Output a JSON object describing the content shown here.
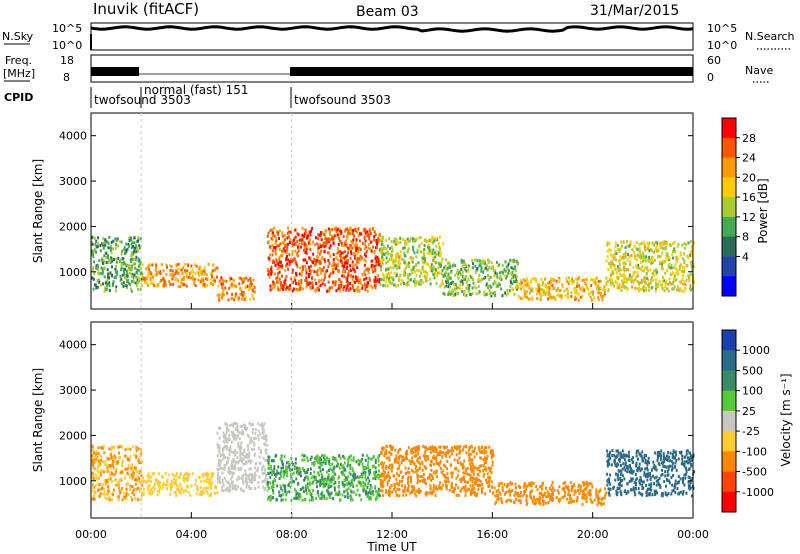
{
  "header": {
    "station": "Inuvik (fitACF)",
    "beam": "Beam 03",
    "date": "31/Mar/2015"
  },
  "panels": {
    "nsky_label": "N.Sky",
    "nsearch_label": "N.Search",
    "freq_label_1": "Freq.",
    "freq_label_2": "[MHz]",
    "nave_label": "Nave",
    "cpid_label": "CPID",
    "cpid_segments": [
      {
        "label": "twofsound 3503",
        "start_hour": 0,
        "end_hour": 2
      },
      {
        "label": "normal (fast) 151",
        "start_hour": 2,
        "end_hour": 8
      },
      {
        "label": "twofsound 3503",
        "start_hour": 8,
        "end_hour": 24
      }
    ],
    "nsky_ticks": [
      "10^5",
      "10^0"
    ],
    "nsearch_ticks": [
      "10^5",
      "10^0"
    ],
    "freq_ticks": [
      "18",
      "8"
    ],
    "nave_ticks": [
      "60",
      "0"
    ]
  },
  "power_colorbar": {
    "title": "Power [dB]",
    "ticks": [
      "28",
      "24",
      "20",
      "16",
      "12",
      "8",
      "4"
    ],
    "colors": [
      "#ff0000",
      "#ff5500",
      "#ff9900",
      "#ffcc00",
      "#aacc33",
      "#44aa55",
      "#2d6b58",
      "#2244aa",
      "#0000ff"
    ]
  },
  "velocity_colorbar": {
    "title": "Velocity [m s⁻¹]",
    "ticks": [
      "1000",
      "500",
      "100",
      "25",
      "-25",
      "-100",
      "-500",
      "-1000"
    ],
    "colors": [
      "#1a3fb0",
      "#2b6b8a",
      "#3a8a66",
      "#55cc33",
      "#c8c8c0",
      "#ffcc33",
      "#ff8800",
      "#ff4400",
      "#ff0000"
    ]
  },
  "chart_data": {
    "type": "heatmap",
    "title": "Inuvik (fitACF)",
    "xlabel": "Time UT",
    "ylabel": "Slant Range [km]",
    "xticks": [
      "00:00",
      "04:00",
      "08:00",
      "12:00",
      "16:00",
      "20:00",
      "00:00"
    ],
    "xlim_hours": [
      0,
      24
    ],
    "yticks": [
      "1000",
      "2000",
      "3000",
      "4000"
    ],
    "ylim_km": [
      180,
      4500
    ],
    "power_scatter_regions": [
      {
        "start_hour": 0.0,
        "end_hour": 2.0,
        "range_min_km": 600,
        "range_max_km": 1800,
        "power_db": 12
      },
      {
        "start_hour": 2.0,
        "end_hour": 5.0,
        "range_min_km": 700,
        "range_max_km": 1200,
        "power_db": 24
      },
      {
        "start_hour": 5.0,
        "end_hour": 6.5,
        "range_min_km": 400,
        "range_max_km": 900,
        "power_db": 26
      },
      {
        "start_hour": 7.0,
        "end_hour": 11.5,
        "range_min_km": 600,
        "range_max_km": 2000,
        "power_db": 28
      },
      {
        "start_hour": 11.5,
        "end_hour": 14.0,
        "range_min_km": 700,
        "range_max_km": 1800,
        "power_db": 16
      },
      {
        "start_hour": 14.0,
        "end_hour": 17.0,
        "range_min_km": 500,
        "range_max_km": 1300,
        "power_db": 14
      },
      {
        "start_hour": 17.0,
        "end_hour": 20.5,
        "range_min_km": 400,
        "range_max_km": 900,
        "power_db": 22
      },
      {
        "start_hour": 20.5,
        "end_hour": 24.0,
        "range_min_km": 600,
        "range_max_km": 1700,
        "power_db": 18
      }
    ],
    "velocity_scatter_regions": [
      {
        "start_hour": 0.0,
        "end_hour": 2.0,
        "range_min_km": 600,
        "range_max_km": 1800,
        "velocity": -100
      },
      {
        "start_hour": 2.0,
        "end_hour": 5.0,
        "range_min_km": 700,
        "range_max_km": 1200,
        "velocity": -60
      },
      {
        "start_hour": 5.0,
        "end_hour": 7.0,
        "range_min_km": 800,
        "range_max_km": 2300,
        "velocity": 0
      },
      {
        "start_hour": 7.0,
        "end_hour": 11.5,
        "range_min_km": 600,
        "range_max_km": 1600,
        "velocity": 100
      },
      {
        "start_hour": 11.5,
        "end_hour": 16.0,
        "range_min_km": 700,
        "range_max_km": 1800,
        "velocity": -200
      },
      {
        "start_hour": 16.0,
        "end_hour": 20.5,
        "range_min_km": 500,
        "range_max_km": 1000,
        "velocity": -150
      },
      {
        "start_hour": 20.5,
        "end_hour": 24.0,
        "range_min_km": 700,
        "range_max_km": 1700,
        "velocity": 600
      }
    ]
  }
}
